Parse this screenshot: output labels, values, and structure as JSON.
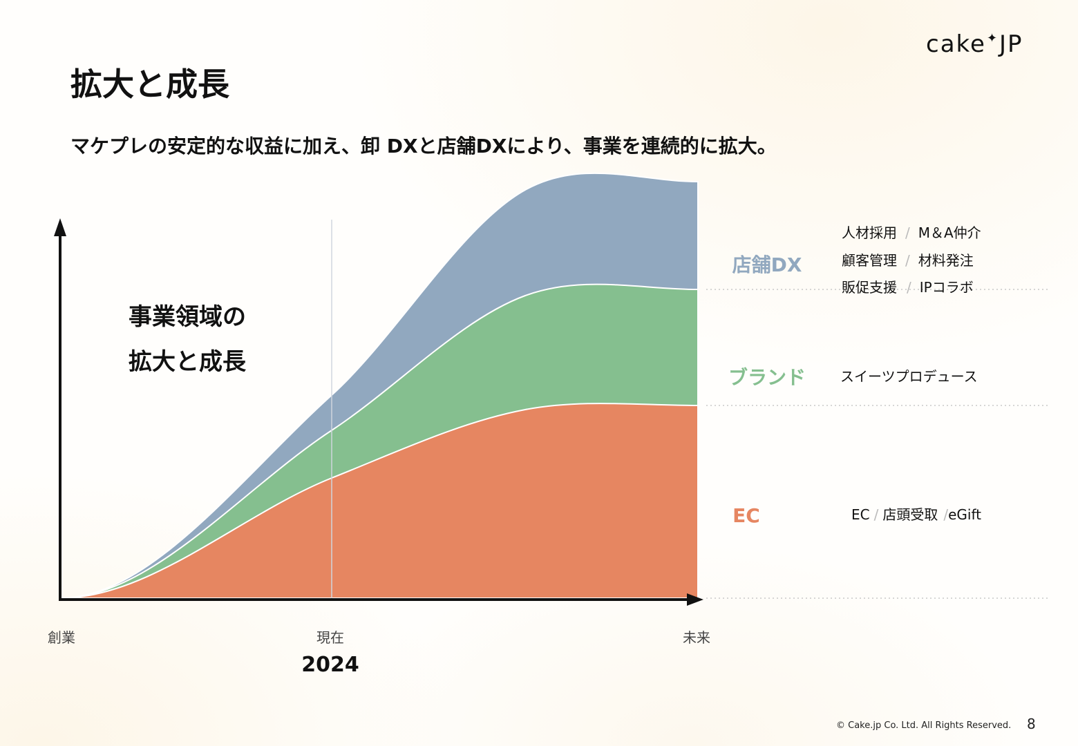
{
  "header": {
    "logo": {
      "left": "cake",
      "star": "✦",
      "right": "JP"
    },
    "title": "拡大と成長",
    "subtitle": "マケプレの安定的な収益に加え、卸 DXと店舗DXにより、事業を連続的に拡大。"
  },
  "chart_data": {
    "type": "area",
    "annotation": [
      "事業領域の",
      "拡大と成長"
    ],
    "x_ticks": [
      "創業",
      "現在",
      "未来"
    ],
    "current_year": "2024",
    "series": [
      {
        "name": "EC",
        "color": "#e68661",
        "values": [
          0,
          0.29,
          0.455,
          0.465
        ],
        "details": [
          "EC",
          "店頭受取",
          "eGift"
        ]
      },
      {
        "name": "ブランド",
        "color": "#85bf8f",
        "values": [
          0,
          0.115,
          0.275,
          0.28
        ],
        "details": [
          "スイーツプロデュース"
        ]
      },
      {
        "name": "店舗DX",
        "color": "#91a8bf",
        "values": [
          0,
          0.085,
          0.255,
          0.26
        ],
        "details": [
          "人材採用",
          "M＆A仲介",
          "顧客管理",
          "材料発注",
          "販促支援",
          "IPコラボ"
        ]
      }
    ]
  },
  "footer": {
    "copyright": "© Cake.jp Co. Ltd. All Rights Reserved.",
    "page": "8"
  }
}
